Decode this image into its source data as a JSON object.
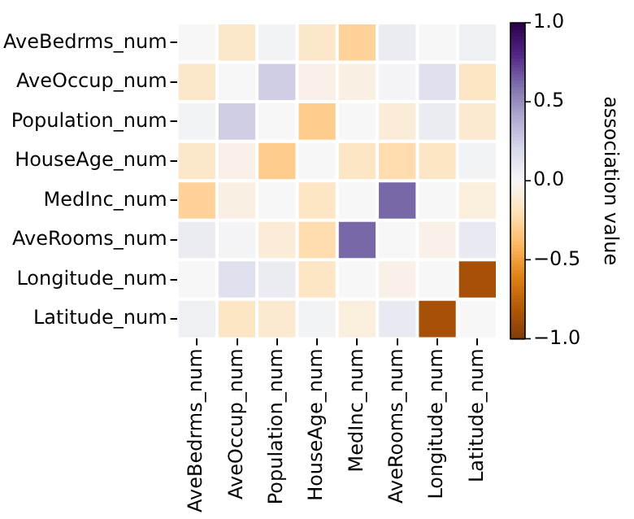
{
  "chart_data": {
    "type": "heatmap",
    "categories": [
      "AveBedrms_num",
      "AveOccup_num",
      "Population_num",
      "HouseAge_num",
      "MedInc_num",
      "AveRooms_num",
      "Longitude_num",
      "Latitude_num"
    ],
    "y_categories": [
      "AveBedrms_num",
      "AveOccup_num",
      "Population_num",
      "HouseAge_num",
      "MedInc_num",
      "AveRooms_num",
      "Longitude_num",
      "Latitude_num"
    ],
    "cells": [
      [
        0,
        -0.14,
        0.03,
        -0.14,
        -0.27,
        0.08,
        0.0,
        0.05
      ],
      [
        -0.14,
        0,
        0.25,
        -0.05,
        -0.06,
        0.02,
        0.15,
        -0.15
      ],
      [
        0.03,
        0.25,
        0,
        -0.3,
        0.0,
        -0.1,
        0.08,
        -0.12
      ],
      [
        -0.14,
        -0.05,
        -0.3,
        0,
        -0.15,
        -0.22,
        -0.15,
        0.03
      ],
      [
        -0.27,
        -0.06,
        0.0,
        -0.15,
        0,
        0.63,
        0.0,
        -0.08
      ],
      [
        0.08,
        0.02,
        -0.1,
        -0.22,
        0.63,
        0,
        -0.05,
        0.1
      ],
      [
        0.0,
        0.15,
        0.08,
        -0.15,
        0.0,
        -0.05,
        0,
        -0.85
      ],
      [
        0.05,
        -0.15,
        -0.12,
        0.03,
        -0.08,
        0.1,
        -0.85,
        0
      ]
    ],
    "clabel": "association value",
    "clim": [
      -1,
      1
    ],
    "cticks": [
      {
        "value": -1,
        "label": "−1.0"
      },
      {
        "value": -0.5,
        "label": "−0.5"
      },
      {
        "value": 0,
        "label": "0.0"
      },
      {
        "value": 0.5,
        "label": "0.5"
      },
      {
        "value": 1,
        "label": "1.0"
      }
    ]
  }
}
